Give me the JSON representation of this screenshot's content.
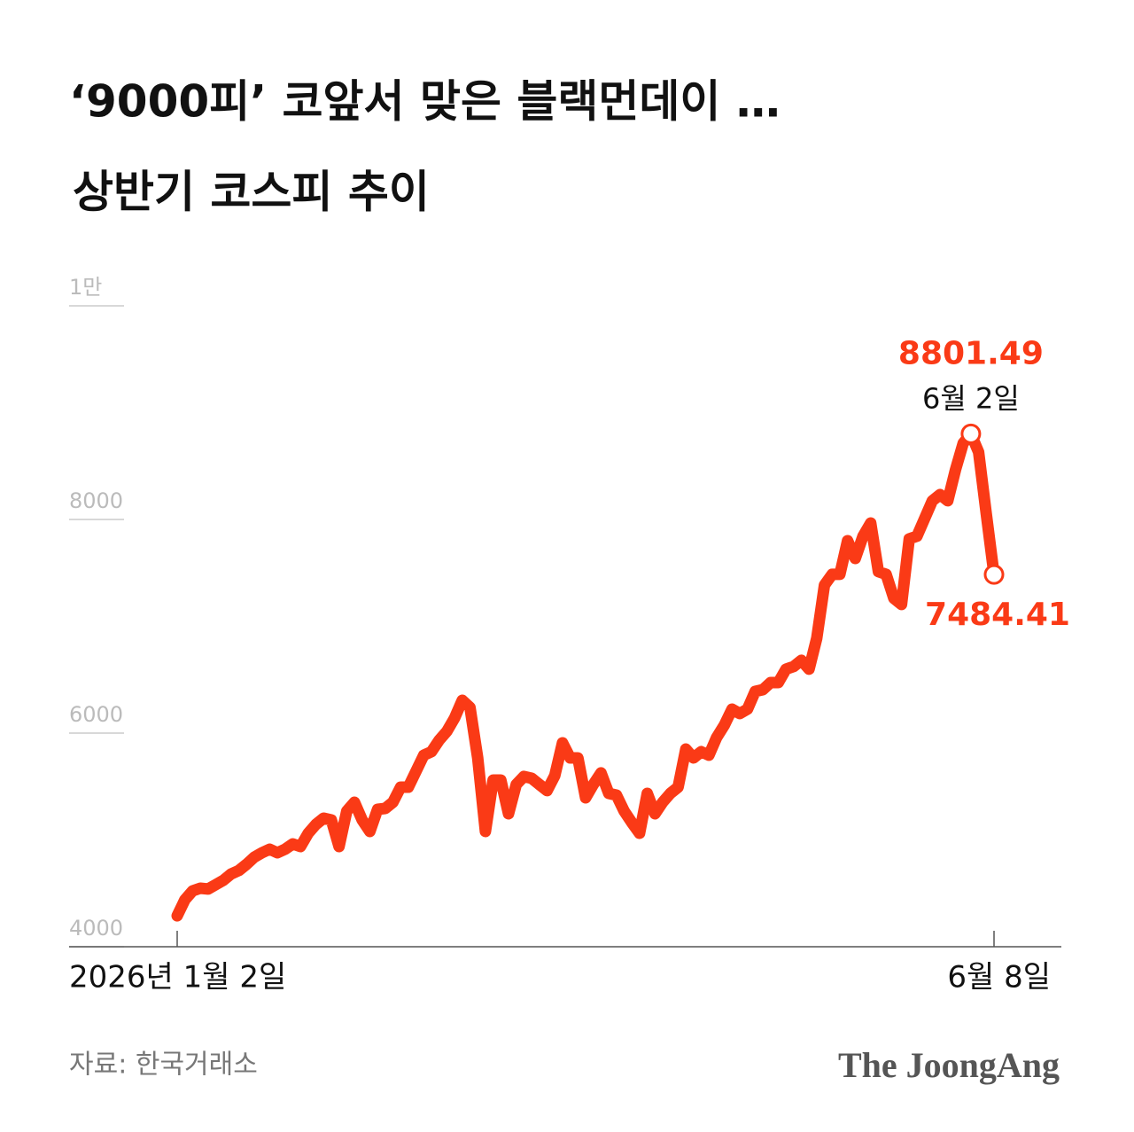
{
  "chart_data": {
    "type": "line",
    "title": [
      "‘9000피’ 코앞서 맞은 블랙먼데이 …",
      "상반기 코스피 추이"
    ],
    "categories": [
      "2026년 1월 2일",
      null,
      null,
      null,
      null,
      null,
      null,
      null,
      null,
      null,
      null,
      null,
      null,
      null,
      null,
      null,
      null,
      null,
      null,
      null,
      null,
      null,
      null,
      null,
      null,
      null,
      null,
      null,
      null,
      null,
      null,
      null,
      null,
      null,
      null,
      null,
      null,
      null,
      null,
      null,
      null,
      null,
      null,
      null,
      null,
      null,
      null,
      null,
      null,
      null,
      null,
      null,
      null,
      null,
      null,
      null,
      null,
      null,
      null,
      null,
      null,
      null,
      null,
      null,
      null,
      null,
      null,
      null,
      null,
      null,
      null,
      null,
      null,
      null,
      null,
      null,
      null,
      null,
      null,
      null,
      null,
      null,
      null,
      null,
      null,
      null,
      null,
      null,
      null,
      null,
      null,
      null,
      null,
      null,
      null,
      null,
      null,
      null,
      null,
      null,
      null,
      null,
      null,
      null,
      null,
      null,
      "6월 8일"
    ],
    "series": [
      {
        "name": "코스피",
        "color": "#fa3a16",
        "values": [
          4290,
          4440,
          4523,
          4548,
          4540,
          4581,
          4622,
          4681,
          4714,
          4772,
          4838,
          4880,
          4913,
          4880,
          4913,
          4963,
          4938,
          5062,
          5145,
          5203,
          5187,
          4938,
          5270,
          5353,
          5187,
          5079,
          5286,
          5295,
          5353,
          5494,
          5494,
          5643,
          5793,
          5826,
          5934,
          6017,
          6141,
          6307,
          6241,
          5768,
          5079,
          5560,
          5560,
          5245,
          5519,
          5594,
          5577,
          5519,
          5461,
          5602,
          5909,
          5768,
          5768,
          5394,
          5519,
          5627,
          5436,
          5419,
          5270,
          5162,
          5062,
          5436,
          5245,
          5353,
          5436,
          5494,
          5851,
          5768,
          5826,
          5793,
          5959,
          6075,
          6224,
          6183,
          6224,
          6390,
          6407,
          6473,
          6473,
          6598,
          6623,
          6681,
          6598,
          6888,
          7386,
          7486,
          7486,
          7801,
          7635,
          7843,
          7967,
          7511,
          7486,
          7262,
          7204,
          7818,
          7843,
          8009,
          8175,
          8233,
          8175,
          8465,
          8714,
          8801.49,
          8631,
          8050,
          7484.41
        ]
      }
    ],
    "annotations": [
      "6월 2일"
    ],
    "ylim": [
      4000,
      10000
    ],
    "yticks": [
      4000,
      6000,
      8000,
      {
        "value": 10000,
        "label": "1만"
      }
    ],
    "grid": true,
    "source": "자료: 한국거래소",
    "logo": "The JoongAng"
  }
}
